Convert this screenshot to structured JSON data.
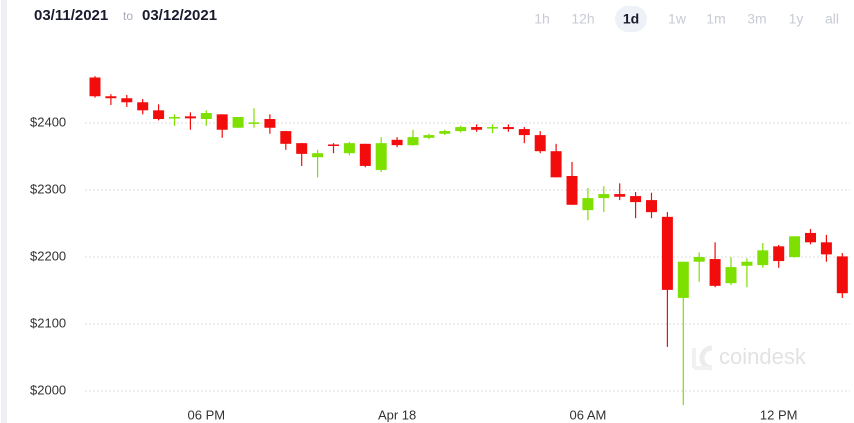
{
  "header": {
    "from": "03/11/2021",
    "separator": "to",
    "to": "03/12/2021"
  },
  "range_buttons": [
    "1h",
    "12h",
    "1d",
    "1w",
    "1m",
    "3m",
    "1y",
    "all"
  ],
  "active_range": "1d",
  "chart_data": {
    "type": "candlestick",
    "watermark": "coindesk",
    "up_color": "#7ee000",
    "down_color": "#f20c0c",
    "grid": true,
    "ylim": [
      1975,
      2495
    ],
    "yticks": [
      {
        "value": 2000,
        "label": "$2000"
      },
      {
        "value": 2100,
        "label": "$2100"
      },
      {
        "value": 2200,
        "label": "$2200"
      },
      {
        "value": 2300,
        "label": "$2300"
      },
      {
        "value": 2400,
        "label": "$2400"
      }
    ],
    "categories": [
      null,
      null,
      null,
      null,
      null,
      null,
      null,
      "06 PM",
      null,
      null,
      null,
      null,
      null,
      null,
      null,
      null,
      null,
      null,
      null,
      "Apr 18",
      null,
      null,
      null,
      null,
      null,
      null,
      null,
      null,
      null,
      null,
      null,
      "06 AM",
      null,
      null,
      null,
      null,
      null,
      null,
      null,
      null,
      null,
      null,
      null,
      "12 PM",
      null,
      null,
      null,
      null
    ],
    "open": [
      2468,
      2440,
      2437,
      2431,
      2419,
      2408,
      2410,
      2406,
      2413,
      2393,
      2400,
      2406,
      2388,
      2370,
      2349,
      2368,
      2355,
      2369,
      2330,
      2375,
      2367,
      2378,
      2384,
      2388,
      2394,
      2393,
      2394,
      2391,
      2382,
      2358,
      2321,
      2270,
      2288,
      2294,
      2291,
      2285,
      2260,
      2139,
      2193,
      2197,
      2161,
      2187,
      2188,
      2216,
      2200,
      2236,
      2222,
      2201
    ],
    "high": [
      2470,
      2443,
      2442,
      2436,
      2428,
      2413,
      2416,
      2419,
      2413,
      2409,
      2422,
      2413,
      2388,
      2370,
      2360,
      2370,
      2372,
      2369,
      2379,
      2379,
      2390,
      2384,
      2390,
      2396,
      2398,
      2398,
      2398,
      2394,
      2388,
      2369,
      2342,
      2303,
      2306,
      2310,
      2297,
      2296,
      2267,
      2193,
      2207,
      2222,
      2200,
      2198,
      2221,
      2218,
      2231,
      2242,
      2233,
      2206
    ],
    "low": [
      2438,
      2427,
      2424,
      2413,
      2404,
      2396,
      2390,
      2396,
      2378,
      2393,
      2393,
      2384,
      2360,
      2336,
      2319,
      2355,
      2352,
      2334,
      2327,
      2364,
      2366,
      2376,
      2382,
      2386,
      2387,
      2385,
      2387,
      2370,
      2355,
      2319,
      2278,
      2255,
      2267,
      2285,
      2258,
      2258,
      2066,
      1979,
      2163,
      2155,
      2158,
      2155,
      2184,
      2184,
      2199,
      2219,
      2193,
      2139
    ],
    "close": [
      2440,
      2437,
      2431,
      2419,
      2406,
      2409,
      2407,
      2415,
      2390,
      2409,
      2401,
      2393,
      2369,
      2354,
      2355,
      2366,
      2370,
      2336,
      2370,
      2367,
      2379,
      2382,
      2388,
      2394,
      2390,
      2394,
      2391,
      2382,
      2358,
      2319,
      2278,
      2288,
      2294,
      2290,
      2282,
      2267,
      2151,
      2193,
      2200,
      2157,
      2185,
      2193,
      2210,
      2194,
      2231,
      2222,
      2204,
      2146
    ]
  }
}
